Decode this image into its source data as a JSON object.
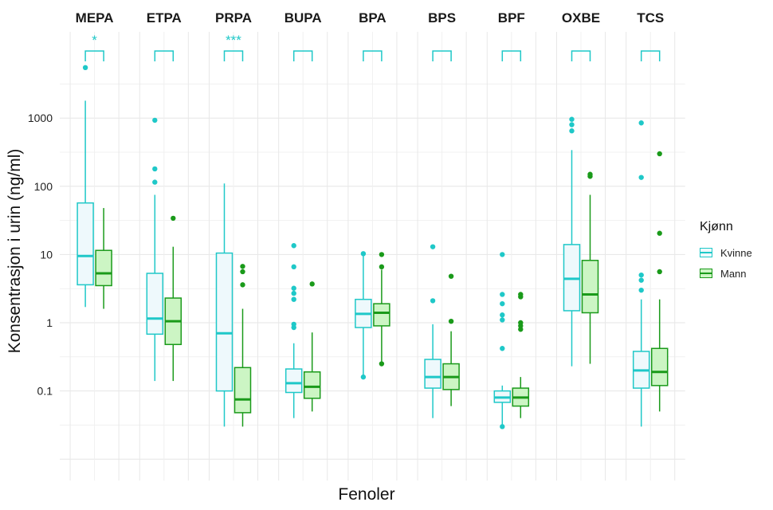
{
  "chart_data": {
    "type": "boxplot",
    "xlabel": "Fenoler",
    "ylabel": "Konsentrasjon i urin (ng/ml)",
    "y_scale": "log10",
    "ylim": [
      0.007,
      5000
    ],
    "y_ticks": [
      "0.1",
      "1",
      "10",
      "100",
      "1000"
    ],
    "legend": {
      "title": "Kjønn",
      "position": "right",
      "entries": [
        {
          "name": "Kvinne",
          "color": "#1fc8c8",
          "fill": "#eef9fc"
        },
        {
          "name": "Mann",
          "color": "#1a9a1a",
          "fill": "#ccf5c4"
        }
      ]
    },
    "panels": [
      {
        "title": "MEPA",
        "significance": "*",
        "Kvinne": {
          "whislo": 1.7,
          "q1": 3.6,
          "med": 9.5,
          "q3": 57,
          "whishi": 1800,
          "outliers": [
            5500
          ]
        },
        "Mann": {
          "whislo": 1.6,
          "q1": 3.5,
          "med": 5.3,
          "q3": 11.5,
          "whishi": 48,
          "outliers": []
        }
      },
      {
        "title": "ETPA",
        "significance": "",
        "Kvinne": {
          "whislo": 0.14,
          "q1": 0.68,
          "med": 1.15,
          "q3": 5.3,
          "whishi": 75,
          "outliers": [
            115,
            180,
            930
          ]
        },
        "Mann": {
          "whislo": 0.14,
          "q1": 0.48,
          "med": 1.05,
          "q3": 2.3,
          "whishi": 13,
          "outliers": [
            34
          ]
        }
      },
      {
        "title": "PRPA",
        "significance": "***",
        "Kvinne": {
          "whislo": 0.03,
          "q1": 0.1,
          "med": 0.7,
          "q3": 10.5,
          "whishi": 110,
          "outliers": []
        },
        "Mann": {
          "whislo": 0.03,
          "q1": 0.048,
          "med": 0.075,
          "q3": 0.22,
          "whishi": 1.6,
          "outliers": [
            3.6,
            5.6,
            6.7
          ]
        }
      },
      {
        "title": "BUPA",
        "significance": "",
        "Kvinne": {
          "whislo": 0.04,
          "q1": 0.095,
          "med": 0.13,
          "q3": 0.21,
          "whishi": 0.5,
          "outliers": [
            0.85,
            0.95,
            2.2,
            2.7,
            3.2,
            6.6,
            13.5
          ]
        },
        "Mann": {
          "whislo": 0.05,
          "q1": 0.078,
          "med": 0.115,
          "q3": 0.19,
          "whishi": 0.72,
          "outliers": [
            3.7
          ]
        }
      },
      {
        "title": "BPA",
        "significance": "",
        "Kvinne": {
          "whislo": 0.16,
          "q1": 0.85,
          "med": 1.35,
          "q3": 2.2,
          "whishi": 10,
          "outliers": [
            0.16,
            10.3
          ]
        },
        "Mann": {
          "whislo": 0.25,
          "q1": 0.9,
          "med": 1.4,
          "q3": 1.9,
          "whishi": 6,
          "outliers": [
            0.25,
            6.6,
            10
          ]
        }
      },
      {
        "title": "BPS",
        "significance": "",
        "Kvinne": {
          "whislo": 0.04,
          "q1": 0.11,
          "med": 0.16,
          "q3": 0.29,
          "whishi": 0.95,
          "outliers": [
            2.1,
            13
          ]
        },
        "Mann": {
          "whislo": 0.06,
          "q1": 0.105,
          "med": 0.16,
          "q3": 0.25,
          "whishi": 0.75,
          "outliers": [
            1.05,
            4.8
          ]
        }
      },
      {
        "title": "BPF",
        "significance": "",
        "Kvinne": {
          "whislo": 0.03,
          "q1": 0.068,
          "med": 0.08,
          "q3": 0.1,
          "whishi": 0.12,
          "outliers": [
            0.03,
            0.42,
            1.1,
            1.3,
            1.9,
            2.6,
            10
          ]
        },
        "Mann": {
          "whislo": 0.04,
          "q1": 0.06,
          "med": 0.08,
          "q3": 0.11,
          "whishi": 0.16,
          "outliers": [
            0.8,
            0.9,
            1.0,
            2.4,
            2.6
          ]
        }
      },
      {
        "title": "OXBE",
        "significance": "",
        "Kvinne": {
          "whislo": 0.23,
          "q1": 1.5,
          "med": 4.4,
          "q3": 14,
          "whishi": 340,
          "outliers": [
            650,
            800,
            960
          ]
        },
        "Mann": {
          "whislo": 0.25,
          "q1": 1.4,
          "med": 2.6,
          "q3": 8.2,
          "whishi": 75,
          "outliers": [
            140,
            150
          ]
        }
      },
      {
        "title": "TCS",
        "significance": "",
        "Kvinne": {
          "whislo": 0.03,
          "q1": 0.11,
          "med": 0.2,
          "q3": 0.38,
          "whishi": 2.2,
          "outliers": [
            3.0,
            4.2,
            5.0,
            135,
            850
          ]
        },
        "Mann": {
          "whislo": 0.05,
          "q1": 0.12,
          "med": 0.19,
          "q3": 0.42,
          "whishi": 2.2,
          "outliers": [
            5.6,
            20.5,
            300
          ]
        }
      }
    ]
  }
}
